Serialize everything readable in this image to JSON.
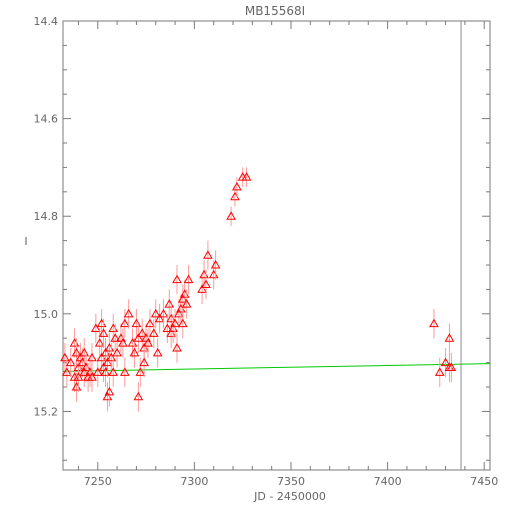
{
  "chart_data": {
    "type": "scatter",
    "title": "MB15568I",
    "xlabel": "JD - 2450000",
    "ylabel": "I",
    "xlim": [
      7232,
      7453
    ],
    "ylim": [
      15.32,
      14.4
    ],
    "y_inverted": true,
    "x_ticks": [
      7250,
      7300,
      7350,
      7400,
      7450
    ],
    "y_ticks": [
      14.4,
      14.6,
      14.8,
      15.0,
      15.2
    ],
    "y_tick_labels": [
      "14.4",
      "14.6",
      "14.8",
      "15.0",
      "15.2"
    ],
    "grid": false,
    "colors": {
      "data": "#ff0000",
      "errorbar": "#ff9999",
      "model": "#00cc00",
      "axis": "#7a7a7a",
      "marker_line": "#8a8aa0"
    },
    "model_line": {
      "x": [
        7232,
        7453
      ],
      "y": [
        15.118,
        15.102
      ]
    },
    "vertical_marker_x": 7438,
    "points": [
      {
        "x": 7233,
        "y": 15.09,
        "e": 0.03
      },
      {
        "x": 7234,
        "y": 15.12,
        "e": 0.03
      },
      {
        "x": 7236,
        "y": 15.1,
        "e": 0.03
      },
      {
        "x": 7238,
        "y": 15.06,
        "e": 0.03
      },
      {
        "x": 7238,
        "y": 15.13,
        "e": 0.03
      },
      {
        "x": 7239,
        "y": 15.08,
        "e": 0.03
      },
      {
        "x": 7239,
        "y": 15.15,
        "e": 0.03
      },
      {
        "x": 7240,
        "y": 15.11,
        "e": 0.03
      },
      {
        "x": 7240,
        "y": 15.13,
        "e": 0.03
      },
      {
        "x": 7241,
        "y": 15.09,
        "e": 0.03
      },
      {
        "x": 7242,
        "y": 15.1,
        "e": 0.03
      },
      {
        "x": 7243,
        "y": 15.12,
        "e": 0.03
      },
      {
        "x": 7243,
        "y": 15.08,
        "e": 0.03
      },
      {
        "x": 7244,
        "y": 15.11,
        "e": 0.03
      },
      {
        "x": 7245,
        "y": 15.13,
        "e": 0.03
      },
      {
        "x": 7246,
        "y": 15.12,
        "e": 0.03
      },
      {
        "x": 7247,
        "y": 15.13,
        "e": 0.03
      },
      {
        "x": 7247,
        "y": 15.09,
        "e": 0.03
      },
      {
        "x": 7249,
        "y": 15.03,
        "e": 0.03
      },
      {
        "x": 7250,
        "y": 15.12,
        "e": 0.03
      },
      {
        "x": 7251,
        "y": 15.06,
        "e": 0.03
      },
      {
        "x": 7252,
        "y": 15.02,
        "e": 0.03
      },
      {
        "x": 7252,
        "y": 15.09,
        "e": 0.03
      },
      {
        "x": 7253,
        "y": 15.11,
        "e": 0.03
      },
      {
        "x": 7253,
        "y": 15.04,
        "e": 0.03
      },
      {
        "x": 7254,
        "y": 15.08,
        "e": 0.03
      },
      {
        "x": 7254,
        "y": 15.12,
        "e": 0.03
      },
      {
        "x": 7255,
        "y": 15.17,
        "e": 0.03
      },
      {
        "x": 7255,
        "y": 15.1,
        "e": 0.03
      },
      {
        "x": 7256,
        "y": 15.07,
        "e": 0.03
      },
      {
        "x": 7256,
        "y": 15.16,
        "e": 0.03
      },
      {
        "x": 7257,
        "y": 15.09,
        "e": 0.03
      },
      {
        "x": 7258,
        "y": 15.03,
        "e": 0.03
      },
      {
        "x": 7258,
        "y": 15.12,
        "e": 0.03
      },
      {
        "x": 7259,
        "y": 15.05,
        "e": 0.03
      },
      {
        "x": 7260,
        "y": 15.08,
        "e": 0.03
      },
      {
        "x": 7262,
        "y": 15.05,
        "e": 0.03
      },
      {
        "x": 7263,
        "y": 15.06,
        "e": 0.03
      },
      {
        "x": 7264,
        "y": 15.02,
        "e": 0.03
      },
      {
        "x": 7264,
        "y": 15.12,
        "e": 0.03
      },
      {
        "x": 7266,
        "y": 15.0,
        "e": 0.03
      },
      {
        "x": 7268,
        "y": 15.06,
        "e": 0.03
      },
      {
        "x": 7269,
        "y": 15.08,
        "e": 0.03
      },
      {
        "x": 7270,
        "y": 15.02,
        "e": 0.03
      },
      {
        "x": 7271,
        "y": 15.17,
        "e": 0.03
      },
      {
        "x": 7271,
        "y": 15.05,
        "e": 0.03
      },
      {
        "x": 7272,
        "y": 15.12,
        "e": 0.03
      },
      {
        "x": 7273,
        "y": 15.04,
        "e": 0.03
      },
      {
        "x": 7274,
        "y": 15.07,
        "e": 0.03
      },
      {
        "x": 7274,
        "y": 15.1,
        "e": 0.03
      },
      {
        "x": 7275,
        "y": 15.05,
        "e": 0.03
      },
      {
        "x": 7276,
        "y": 15.06,
        "e": 0.03
      },
      {
        "x": 7277,
        "y": 15.02,
        "e": 0.03
      },
      {
        "x": 7279,
        "y": 15.04,
        "e": 0.03
      },
      {
        "x": 7280,
        "y": 15.0,
        "e": 0.03
      },
      {
        "x": 7281,
        "y": 15.08,
        "e": 0.03
      },
      {
        "x": 7282,
        "y": 15.01,
        "e": 0.03
      },
      {
        "x": 7284,
        "y": 15.0,
        "e": 0.03
      },
      {
        "x": 7286,
        "y": 15.03,
        "e": 0.03
      },
      {
        "x": 7287,
        "y": 14.98,
        "e": 0.03
      },
      {
        "x": 7288,
        "y": 15.04,
        "e": 0.03
      },
      {
        "x": 7288,
        "y": 15.01,
        "e": 0.03
      },
      {
        "x": 7289,
        "y": 15.03,
        "e": 0.03
      },
      {
        "x": 7290,
        "y": 15.02,
        "e": 0.03
      },
      {
        "x": 7291,
        "y": 14.93,
        "e": 0.03
      },
      {
        "x": 7291,
        "y": 15.07,
        "e": 0.03
      },
      {
        "x": 7292,
        "y": 15.0,
        "e": 0.03
      },
      {
        "x": 7293,
        "y": 14.99,
        "e": 0.03
      },
      {
        "x": 7294,
        "y": 14.97,
        "e": 0.03
      },
      {
        "x": 7294,
        "y": 15.02,
        "e": 0.03
      },
      {
        "x": 7295,
        "y": 14.96,
        "e": 0.03
      },
      {
        "x": 7296,
        "y": 14.98,
        "e": 0.03
      },
      {
        "x": 7297,
        "y": 14.93,
        "e": 0.03
      },
      {
        "x": 7304,
        "y": 14.95,
        "e": 0.03
      },
      {
        "x": 7305,
        "y": 14.92,
        "e": 0.03
      },
      {
        "x": 7306,
        "y": 14.94,
        "e": 0.03
      },
      {
        "x": 7307,
        "y": 14.88,
        "e": 0.03
      },
      {
        "x": 7310,
        "y": 14.92,
        "e": 0.03
      },
      {
        "x": 7311,
        "y": 14.9,
        "e": 0.03
      },
      {
        "x": 7319,
        "y": 14.8,
        "e": 0.02
      },
      {
        "x": 7321,
        "y": 14.76,
        "e": 0.02
      },
      {
        "x": 7322,
        "y": 14.74,
        "e": 0.02
      },
      {
        "x": 7325,
        "y": 14.72,
        "e": 0.02
      },
      {
        "x": 7327,
        "y": 14.72,
        "e": 0.02
      },
      {
        "x": 7424,
        "y": 15.02,
        "e": 0.03
      },
      {
        "x": 7427,
        "y": 15.12,
        "e": 0.03
      },
      {
        "x": 7430,
        "y": 15.1,
        "e": 0.03
      },
      {
        "x": 7432,
        "y": 15.11,
        "e": 0.03
      },
      {
        "x": 7432,
        "y": 15.05,
        "e": 0.03
      },
      {
        "x": 7433,
        "y": 15.11,
        "e": 0.03
      }
    ]
  }
}
